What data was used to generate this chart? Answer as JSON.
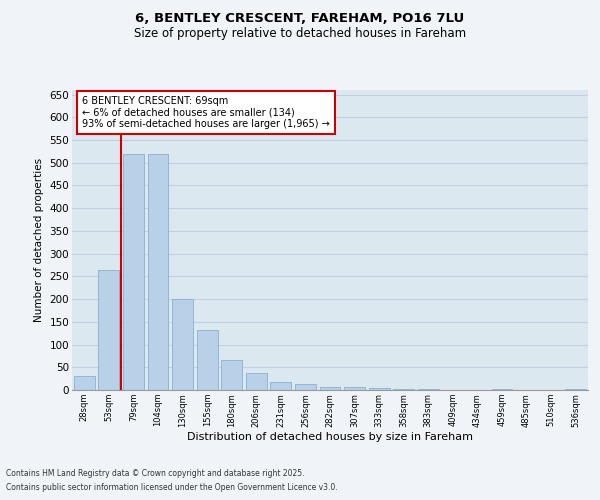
{
  "title": "6, BENTLEY CRESCENT, FAREHAM, PO16 7LU",
  "subtitle": "Size of property relative to detached houses in Fareham",
  "xlabel": "Distribution of detached houses by size in Fareham",
  "ylabel": "Number of detached properties",
  "categories": [
    "28sqm",
    "53sqm",
    "79sqm",
    "104sqm",
    "130sqm",
    "155sqm",
    "180sqm",
    "206sqm",
    "231sqm",
    "256sqm",
    "282sqm",
    "307sqm",
    "333sqm",
    "358sqm",
    "383sqm",
    "409sqm",
    "434sqm",
    "459sqm",
    "485sqm",
    "510sqm",
    "536sqm"
  ],
  "values": [
    30,
    265,
    520,
    520,
    200,
    133,
    67,
    38,
    18,
    13,
    7,
    7,
    4,
    3,
    2,
    0,
    0,
    2,
    0,
    0,
    2
  ],
  "bar_color": "#b8d0e8",
  "bar_edge_color": "#8ab0d0",
  "vline_x_index": 1.5,
  "vline_color": "#cc0000",
  "annotation_text": "6 BENTLEY CRESCENT: 69sqm\n← 6% of detached houses are smaller (134)\n93% of semi-detached houses are larger (1,965) →",
  "annotation_box_color": "#ffffff",
  "annotation_box_edge_color": "#cc0000",
  "ylim": [
    0,
    660
  ],
  "yticks": [
    0,
    50,
    100,
    150,
    200,
    250,
    300,
    350,
    400,
    450,
    500,
    550,
    600,
    650
  ],
  "grid_color": "#c0d0e0",
  "bg_color": "#dce8f0",
  "fig_bg_color": "#f0f4f8",
  "footer_line1": "Contains HM Land Registry data © Crown copyright and database right 2025.",
  "footer_line2": "Contains public sector information licensed under the Open Government Licence v3.0."
}
